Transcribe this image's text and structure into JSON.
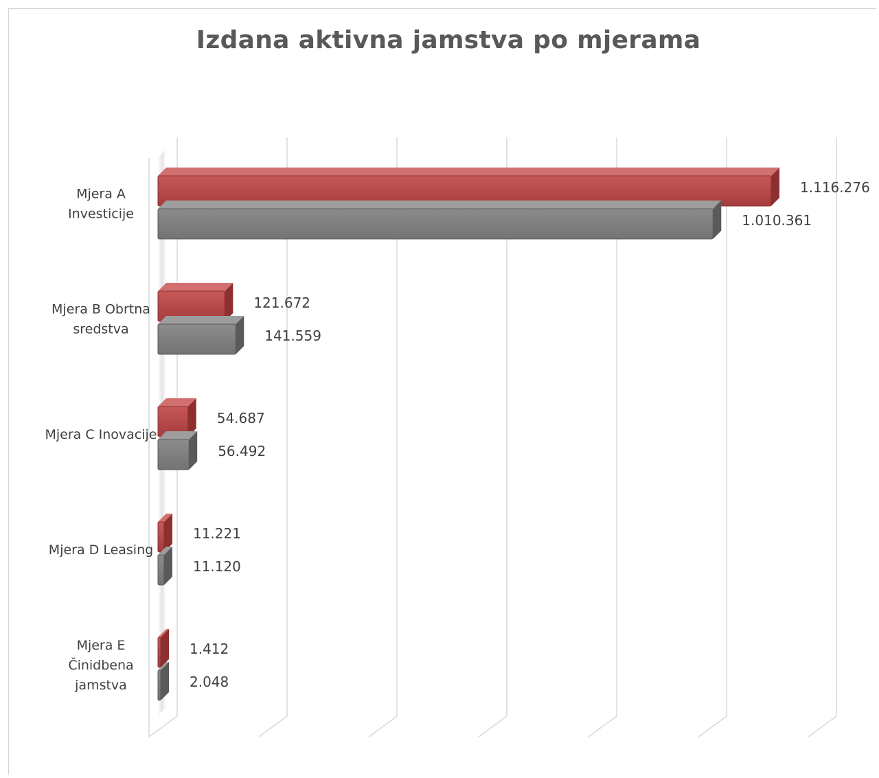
{
  "chart_data": {
    "type": "bar",
    "orientation": "horizontal",
    "title": "Izdana aktivna jamstva po mjerama",
    "xlabel": "",
    "ylabel": "",
    "grid": true,
    "legend": "none",
    "xlim": [
      0,
      1250000
    ],
    "categories": [
      [
        "Mjera A",
        "Investicije"
      ],
      [
        "Mjera B Obrtna",
        "sredstva"
      ],
      [
        "Mjera C Inovacije"
      ],
      [
        "Mjera D Leasing"
      ],
      [
        "Mjera E",
        "Činidbena",
        "jamstva"
      ]
    ],
    "series": [
      {
        "color": "#b94a4a",
        "values": [
          1116276,
          121672,
          54687,
          11221,
          1412
        ],
        "labels": [
          "1.116.276",
          "121.672",
          "54.687",
          "11.221",
          "1.412"
        ]
      },
      {
        "color": "#7f7f7f",
        "values": [
          1010361,
          141559,
          56492,
          11120,
          2048
        ],
        "labels": [
          "1.010.361",
          "141.559",
          "56.492",
          "11.120",
          "2.048"
        ]
      }
    ]
  }
}
